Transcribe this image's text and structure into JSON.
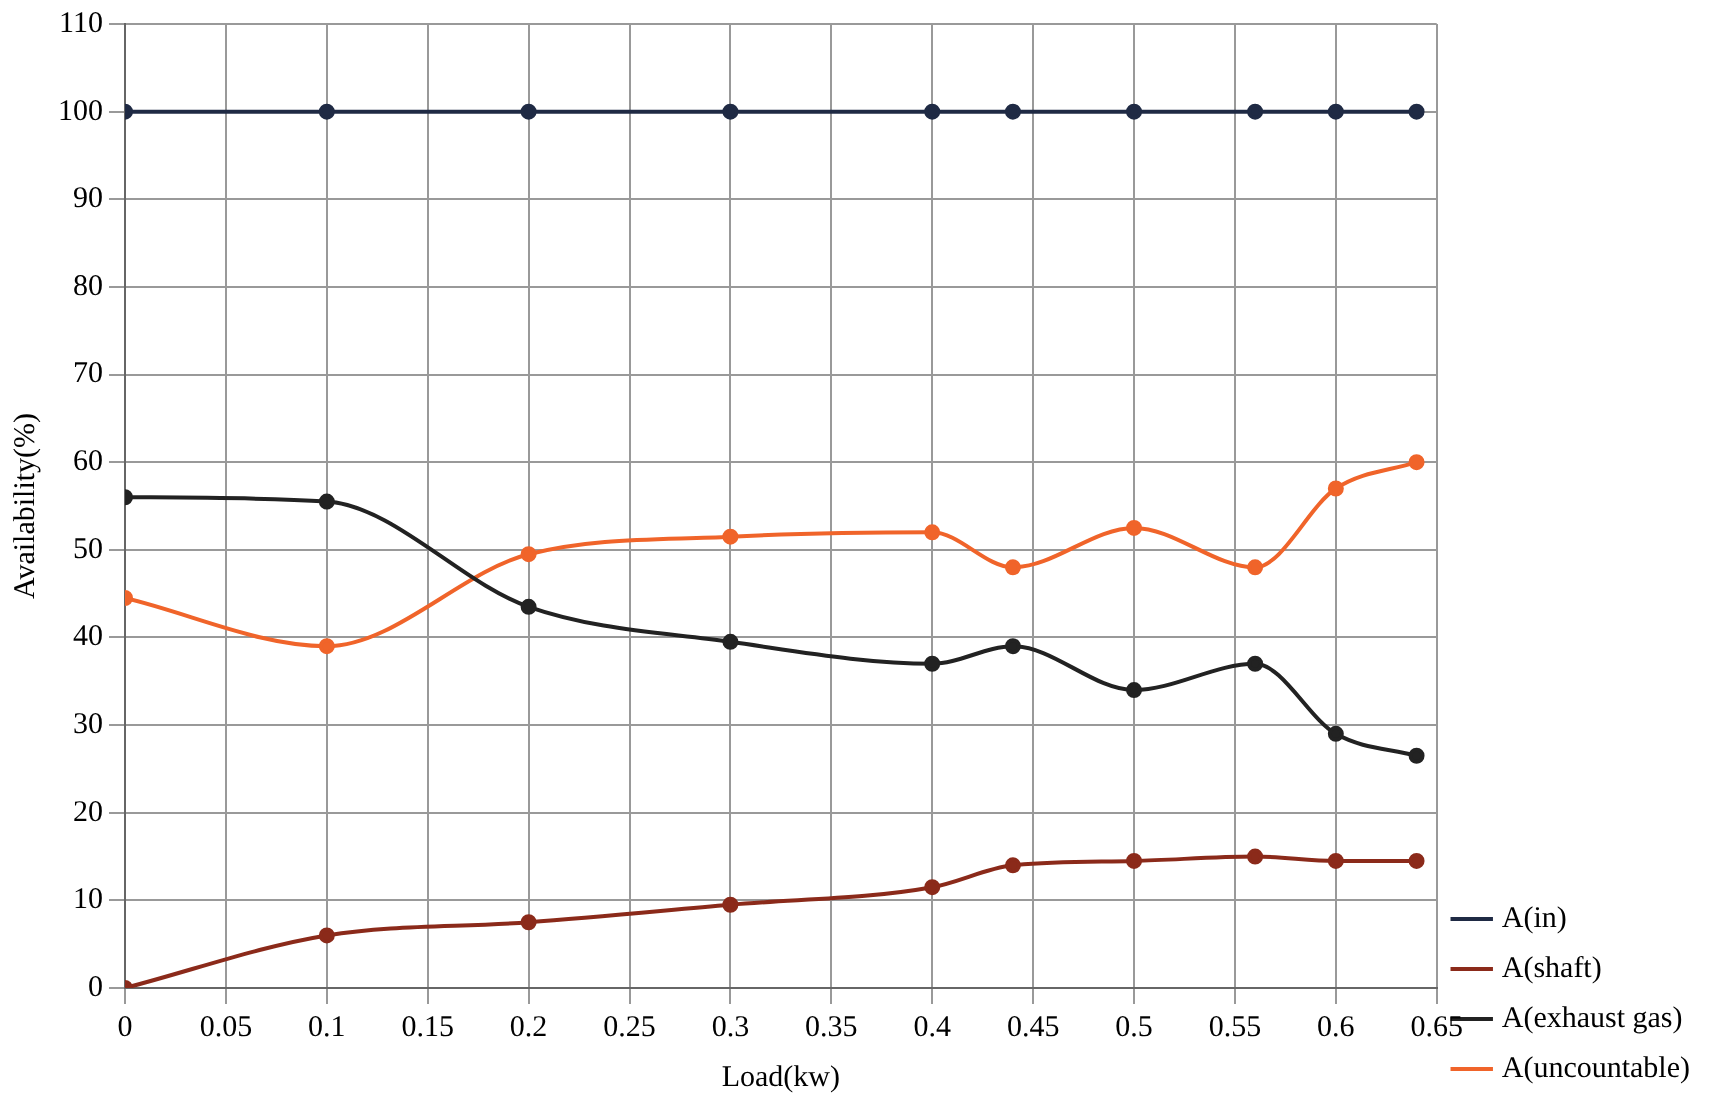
{
  "chart_data": {
    "type": "line",
    "xlabel": "Load(kw)",
    "ylabel": "Availability(%)",
    "x": [
      0,
      0.1,
      0.2,
      0.3,
      0.4,
      0.44,
      0.5,
      0.56,
      0.6,
      0.64
    ],
    "series": [
      {
        "name": "A(in)",
        "color": "#1f2a44",
        "values": [
          100,
          100,
          100,
          100,
          100,
          100,
          100,
          100,
          100,
          100
        ]
      },
      {
        "name": "A(shaft)",
        "color": "#8b2a1a",
        "values": [
          0,
          6,
          7.5,
          9.5,
          11.5,
          14,
          14.5,
          15,
          14.5,
          14.5
        ]
      },
      {
        "name": "A(exhaust gas)",
        "color": "#222222",
        "values": [
          56,
          55.5,
          43.5,
          39.5,
          37,
          39,
          34,
          37,
          29,
          26.5
        ]
      },
      {
        "name": "A(uncountable)",
        "color": "#f0642a",
        "values": [
          44.5,
          39,
          49.5,
          51.5,
          52,
          48,
          52.5,
          48,
          57,
          60
        ]
      }
    ],
    "xlim": [
      0,
      0.65
    ],
    "xticks": [
      0,
      0.05,
      0.1,
      0.15,
      0.2,
      0.25,
      0.3,
      0.35,
      0.4,
      0.45,
      0.5,
      0.55,
      0.6,
      0.65
    ],
    "ylim": [
      0,
      110
    ],
    "yticks": [
      0,
      10,
      20,
      30,
      40,
      50,
      60,
      70,
      80,
      90,
      100,
      110
    ],
    "grid": true,
    "legend": "bottom right",
    "marker": "circle",
    "line_style": "solid"
  }
}
